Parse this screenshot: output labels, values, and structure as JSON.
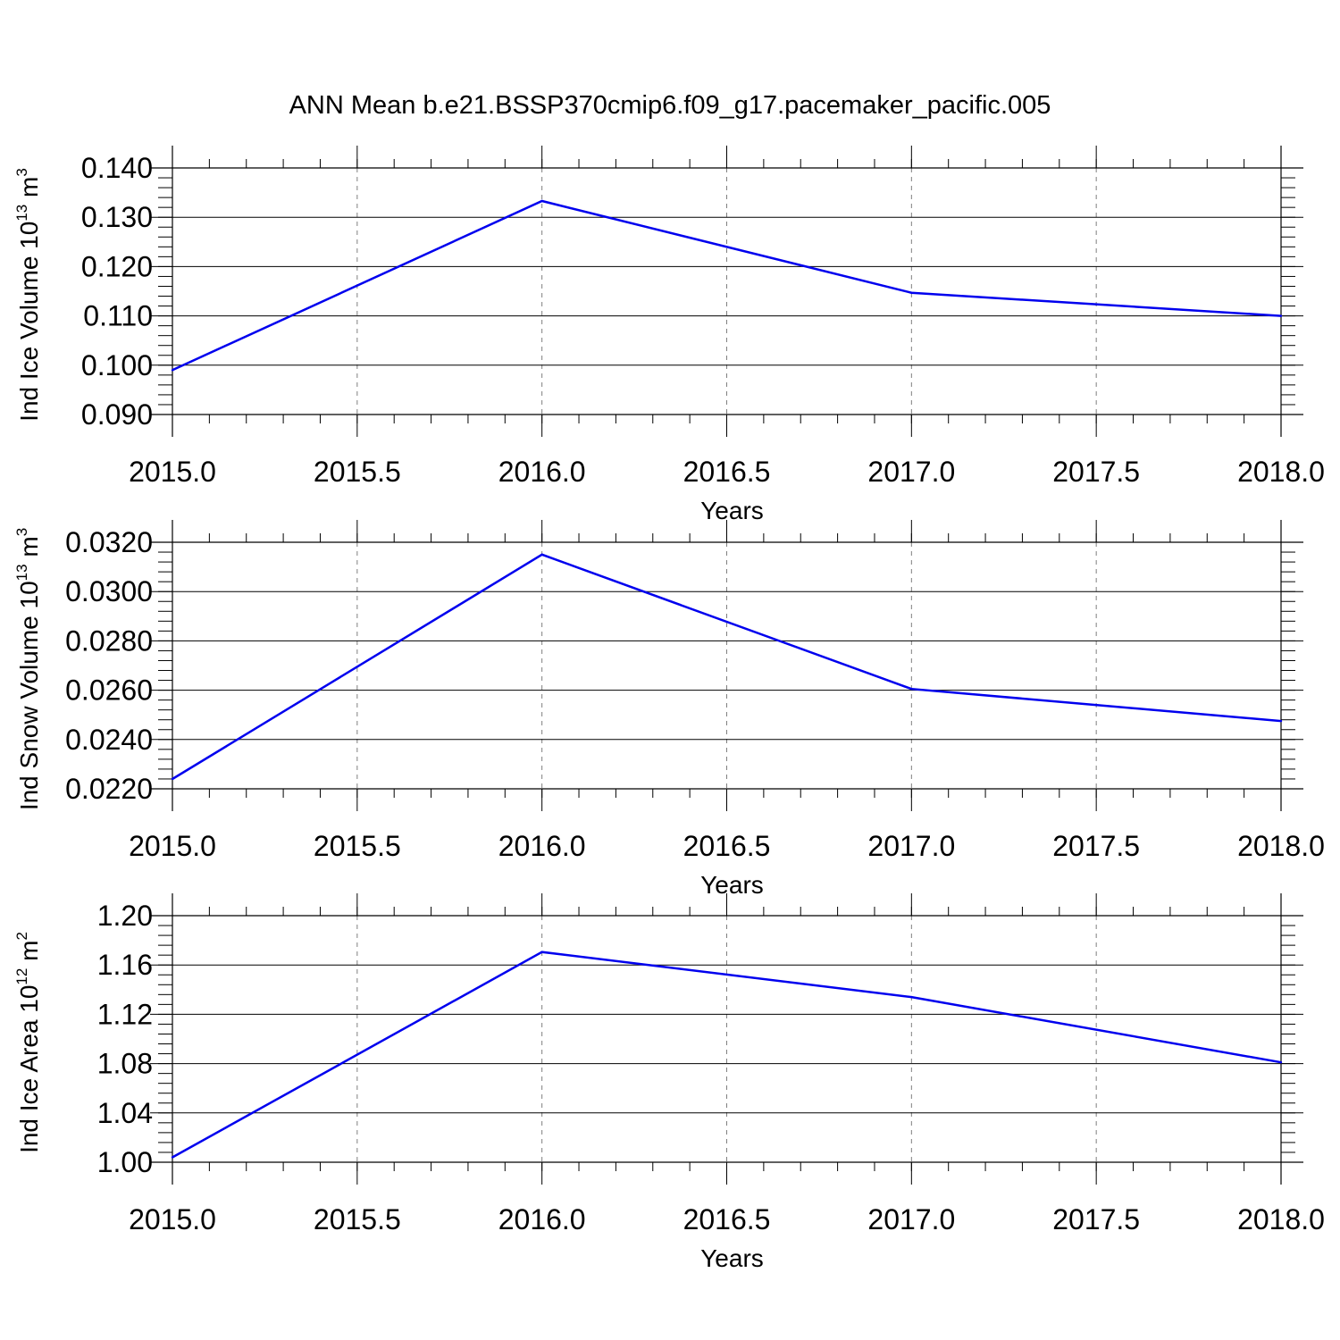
{
  "title": "ANN Mean b.e21.BSSP370cmip6.f09_g17.pacemaker_pacific.005",
  "line_color": "#0000ee",
  "chart_data": [
    {
      "type": "line",
      "xlabel": "Years",
      "ylabel": "Ind Ice Volume 10",
      "ylabel_exp": "13",
      "ylabel_unit": " m",
      "ylabel_unit_exp": "3",
      "x": [
        2015.0,
        2016.0,
        2017.0,
        2018.0
      ],
      "values": [
        0.099,
        0.1333,
        0.1147,
        0.11
      ],
      "xlim": [
        2015.0,
        2018.0
      ],
      "ylim": [
        0.09,
        0.14
      ],
      "xticks": [
        "2015.0",
        "2015.5",
        "2016.0",
        "2016.5",
        "2017.0",
        "2017.5",
        "2018.0"
      ],
      "yticks": [
        "0.090",
        "0.100",
        "0.110",
        "0.120",
        "0.130",
        "0.140"
      ],
      "y_minor_step": 0.002,
      "grid": "vertical dashed at major x ticks"
    },
    {
      "type": "line",
      "xlabel": "Years",
      "ylabel": "Ind Snow Volume 10",
      "ylabel_exp": "13",
      "ylabel_unit": " m",
      "ylabel_unit_exp": "3",
      "x": [
        2015.0,
        2016.0,
        2017.0,
        2018.0
      ],
      "values": [
        0.0224,
        0.0315,
        0.02605,
        0.02475
      ],
      "xlim": [
        2015.0,
        2018.0
      ],
      "ylim": [
        0.022,
        0.032
      ],
      "xticks": [
        "2015.0",
        "2015.5",
        "2016.0",
        "2016.5",
        "2017.0",
        "2017.5",
        "2018.0"
      ],
      "yticks": [
        "0.0220",
        "0.0240",
        "0.0260",
        "0.0280",
        "0.0300",
        "0.0320"
      ],
      "y_minor_step": 0.0004,
      "grid": "vertical dashed at major x ticks"
    },
    {
      "type": "line",
      "xlabel": "Years",
      "ylabel": "Ind Ice Area 10",
      "ylabel_exp": "12",
      "ylabel_unit": " m",
      "ylabel_unit_exp": "2",
      "x": [
        2015.0,
        2016.0,
        2017.0,
        2018.0
      ],
      "values": [
        1.004,
        1.1705,
        1.134,
        1.081
      ],
      "xlim": [
        2015.0,
        2018.0
      ],
      "ylim": [
        1.0,
        1.2
      ],
      "xticks": [
        "2015.0",
        "2015.5",
        "2016.0",
        "2016.5",
        "2017.0",
        "2017.5",
        "2018.0"
      ],
      "yticks": [
        "1.00",
        "1.04",
        "1.08",
        "1.12",
        "1.16",
        "1.20"
      ],
      "y_minor_step": 0.008,
      "grid": "vertical dashed at major x ticks"
    }
  ]
}
